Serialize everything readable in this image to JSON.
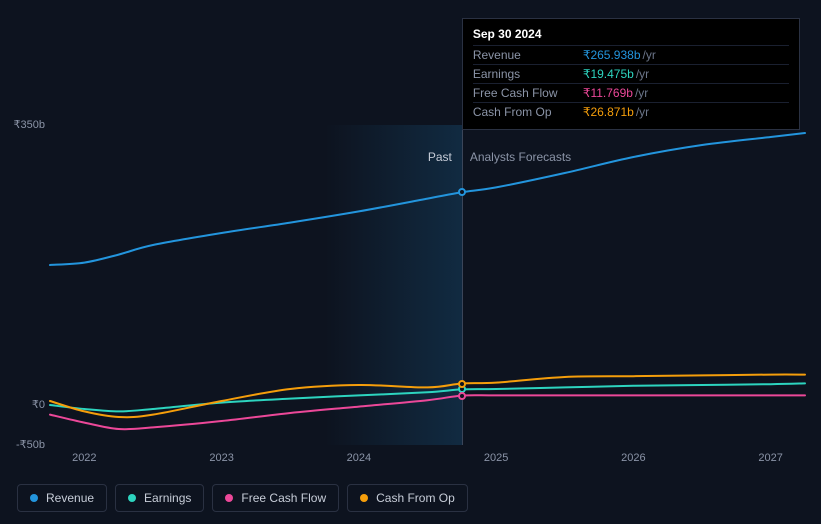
{
  "chart": {
    "type": "line",
    "background_color": "#0d131f",
    "grid_color": "#1a2030",
    "divider_color": "#3a4559",
    "past_label": "Past",
    "forecast_label": "Analysts Forecasts",
    "currency_symbol": "₹",
    "y_axis": {
      "min": -50,
      "max": 350,
      "ticks": [
        {
          "value": 350,
          "label": "₹350b"
        },
        {
          "value": 0,
          "label": "₹0"
        },
        {
          "value": -50,
          "label": "-₹50b"
        }
      ],
      "label_color": "#8b94a7",
      "label_fontsize": 11
    },
    "x_axis": {
      "years": [
        2022,
        2023,
        2024,
        2025,
        2026,
        2027
      ],
      "label_color": "#8b94a7",
      "label_fontsize": 11,
      "past_forecast_split": 2024.75
    },
    "series": [
      {
        "key": "revenue",
        "name": "Revenue",
        "color": "#2395dd",
        "line_width": 2,
        "values": [
          {
            "x": 2021.75,
            "y": 175
          },
          {
            "x": 2022.0,
            "y": 178
          },
          {
            "x": 2022.25,
            "y": 188
          },
          {
            "x": 2022.5,
            "y": 200
          },
          {
            "x": 2023.0,
            "y": 215
          },
          {
            "x": 2023.5,
            "y": 228
          },
          {
            "x": 2024.0,
            "y": 242
          },
          {
            "x": 2024.5,
            "y": 258
          },
          {
            "x": 2024.75,
            "y": 265.938
          },
          {
            "x": 2025.0,
            "y": 272
          },
          {
            "x": 2025.5,
            "y": 290
          },
          {
            "x": 2026.0,
            "y": 310
          },
          {
            "x": 2026.5,
            "y": 325
          },
          {
            "x": 2027.0,
            "y": 335
          },
          {
            "x": 2027.25,
            "y": 340
          }
        ]
      },
      {
        "key": "earnings",
        "name": "Earnings",
        "color": "#2dd4bf",
        "line_width": 2,
        "values": [
          {
            "x": 2021.75,
            "y": 0
          },
          {
            "x": 2022.0,
            "y": -5
          },
          {
            "x": 2022.25,
            "y": -8
          },
          {
            "x": 2022.5,
            "y": -5
          },
          {
            "x": 2023.0,
            "y": 3
          },
          {
            "x": 2023.5,
            "y": 8
          },
          {
            "x": 2024.0,
            "y": 12
          },
          {
            "x": 2024.5,
            "y": 16
          },
          {
            "x": 2024.75,
            "y": 19.475
          },
          {
            "x": 2025.0,
            "y": 20
          },
          {
            "x": 2025.5,
            "y": 22
          },
          {
            "x": 2026.0,
            "y": 24
          },
          {
            "x": 2026.5,
            "y": 25
          },
          {
            "x": 2027.0,
            "y": 26
          },
          {
            "x": 2027.25,
            "y": 27
          }
        ]
      },
      {
        "key": "fcf",
        "name": "Free Cash Flow",
        "color": "#ec4899",
        "line_width": 2,
        "values": [
          {
            "x": 2021.75,
            "y": -12
          },
          {
            "x": 2022.0,
            "y": -22
          },
          {
            "x": 2022.25,
            "y": -30
          },
          {
            "x": 2022.5,
            "y": -28
          },
          {
            "x": 2023.0,
            "y": -20
          },
          {
            "x": 2023.5,
            "y": -10
          },
          {
            "x": 2024.0,
            "y": -2
          },
          {
            "x": 2024.5,
            "y": 6
          },
          {
            "x": 2024.75,
            "y": 11.769
          },
          {
            "x": 2025.0,
            "y": 12
          },
          {
            "x": 2025.5,
            "y": 12
          },
          {
            "x": 2026.0,
            "y": 12
          },
          {
            "x": 2026.5,
            "y": 12
          },
          {
            "x": 2027.0,
            "y": 12
          },
          {
            "x": 2027.25,
            "y": 12
          }
        ]
      },
      {
        "key": "cfo",
        "name": "Cash From Op",
        "color": "#f59e0b",
        "line_width": 2,
        "values": [
          {
            "x": 2021.75,
            "y": 5
          },
          {
            "x": 2022.0,
            "y": -8
          },
          {
            "x": 2022.25,
            "y": -15
          },
          {
            "x": 2022.5,
            "y": -12
          },
          {
            "x": 2023.0,
            "y": 5
          },
          {
            "x": 2023.5,
            "y": 20
          },
          {
            "x": 2024.0,
            "y": 25
          },
          {
            "x": 2024.5,
            "y": 22
          },
          {
            "x": 2024.75,
            "y": 26.871
          },
          {
            "x": 2025.0,
            "y": 28
          },
          {
            "x": 2025.5,
            "y": 35
          },
          {
            "x": 2026.0,
            "y": 36
          },
          {
            "x": 2026.5,
            "y": 37
          },
          {
            "x": 2027.0,
            "y": 38
          },
          {
            "x": 2027.25,
            "y": 38
          }
        ]
      }
    ],
    "highlight": {
      "x": 2024.75,
      "date_label": "Sep 30 2024",
      "rows": [
        {
          "label": "Revenue",
          "value": "₹265.938b",
          "unit": "/yr",
          "color": "#2395dd"
        },
        {
          "label": "Earnings",
          "value": "₹19.475b",
          "unit": "/yr",
          "color": "#2dd4bf"
        },
        {
          "label": "Free Cash Flow",
          "value": "₹11.769b",
          "unit": "/yr",
          "color": "#ec4899"
        },
        {
          "label": "Cash From Op",
          "value": "₹26.871b",
          "unit": "/yr",
          "color": "#f59e0b"
        }
      ]
    }
  },
  "legend": [
    {
      "label": "Revenue",
      "color": "#2395dd"
    },
    {
      "label": "Earnings",
      "color": "#2dd4bf"
    },
    {
      "label": "Free Cash Flow",
      "color": "#ec4899"
    },
    {
      "label": "Cash From Op",
      "color": "#f59e0b"
    }
  ]
}
